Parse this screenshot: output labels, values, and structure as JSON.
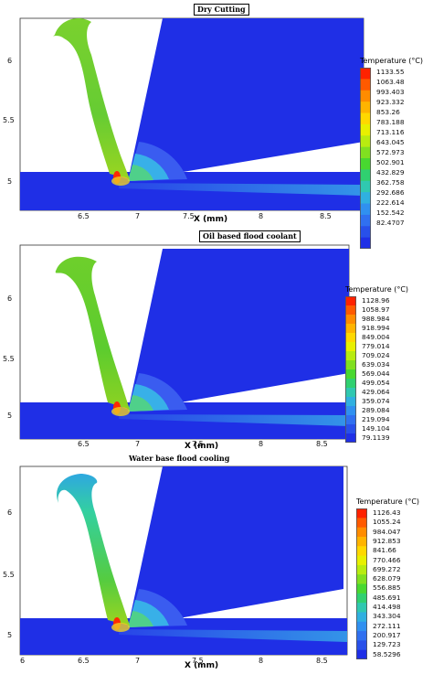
{
  "units": {
    "xlabel": "X (mm)",
    "legend_title": "Temperature (°C)"
  },
  "panels": [
    {
      "title": "Dry Cutting",
      "legend": [
        "1133.55",
        "1063.48",
        "993.403",
        "923.332",
        "853.26",
        "783.188",
        "713.116",
        "643.045",
        "572.973",
        "502.901",
        "432.829",
        "362.758",
        "292.686",
        "222.614",
        "152.542",
        "82.4707"
      ],
      "x_ticks": [
        "6.5",
        "7",
        "7.5",
        "8",
        "8.5"
      ],
      "y_ticks": [
        "6",
        "5.5",
        "5"
      ]
    },
    {
      "title": "Oil based flood coolant",
      "legend": [
        "1128.96",
        "1058.97",
        "988.984",
        "918.994",
        "849.004",
        "779.014",
        "709.024",
        "639.034",
        "569.044",
        "499.054",
        "429.064",
        "359.074",
        "289.084",
        "219.094",
        "149.104",
        "79.1139"
      ],
      "x_ticks": [
        "6.5",
        "7",
        "7.5",
        "8",
        "8.5"
      ],
      "y_ticks": [
        "6",
        "5.5",
        "5"
      ]
    },
    {
      "title": "Water base flood cooling",
      "legend": [
        "1126.43",
        "1055.24",
        "984.047",
        "912.853",
        "841.66",
        "770.466",
        "699.272",
        "628.079",
        "556.885",
        "485.691",
        "414.498",
        "343.304",
        "272.111",
        "200.917",
        "129.723",
        "58.5296"
      ],
      "x_ticks": [
        "6",
        "6.5",
        "7",
        "7.5",
        "8",
        "8.5"
      ],
      "y_ticks": [
        "6",
        "5.5",
        "5"
      ]
    }
  ],
  "colors": {
    "cold": "#1f2fe6",
    "chip_dry": "#66cc33",
    "chip_oil": "#5ccc2e",
    "chip_water": "#33d0a0",
    "hot": "#ff2a00"
  }
}
